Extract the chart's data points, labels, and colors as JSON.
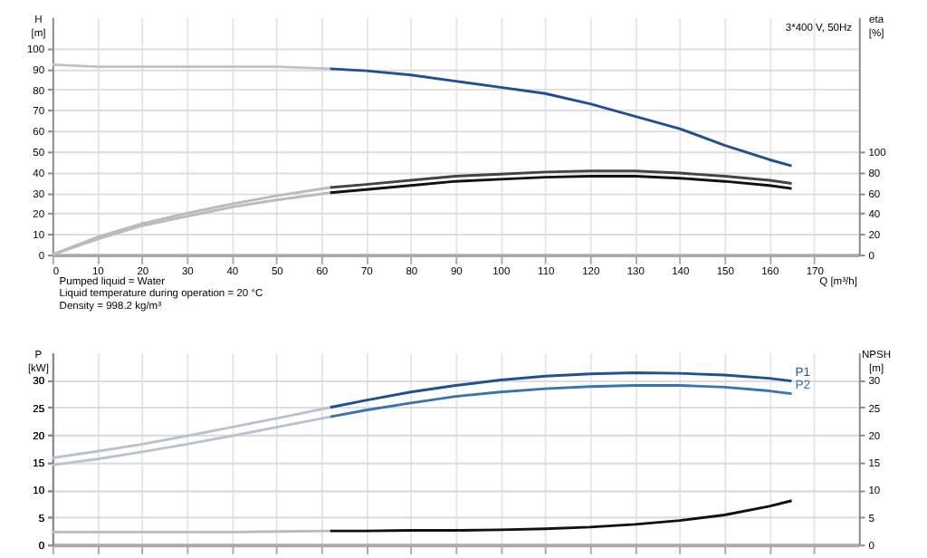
{
  "chart_data": [
    {
      "type": "line",
      "xlabel": "Q [m³/h]",
      "ylabel": "H [m]",
      "y2label": "eta [%]",
      "annotations": [
        "3*400 V, 50Hz",
        "Pumped liquid = Water",
        "Liquid temperature during operation = 20 °C",
        "Density = 998.2 kg/m³"
      ],
      "xlim": [
        0,
        180
      ],
      "xticks": [
        0,
        10,
        20,
        30,
        40,
        50,
        60,
        70,
        80,
        90,
        100,
        110,
        120,
        130,
        140,
        150,
        160,
        170
      ],
      "ylim": [
        0,
        115
      ],
      "yticks": [
        0,
        10,
        20,
        30,
        40,
        50,
        60,
        70,
        80,
        90,
        100
      ],
      "y2lim": [
        0,
        230
      ],
      "y2ticks": [
        0,
        20,
        40,
        60,
        80,
        100
      ],
      "grid": true,
      "series": [
        {
          "color": "#b9c3d0",
          "x": [
            0,
            10,
            20,
            30,
            40,
            50,
            62
          ],
          "values": [
            92,
            91,
            91,
            91,
            91,
            91,
            90
          ]
        },
        {
          "color": "#1f5192",
          "x": [
            62,
            70,
            80,
            90,
            100,
            110,
            120,
            130,
            140,
            150,
            160,
            165
          ],
          "values": [
            90,
            89,
            87,
            84,
            81,
            78,
            73,
            67,
            61,
            53,
            46,
            43
          ]
        },
        {
          "color": "#bbbbbb",
          "axis": "y2",
          "x": [
            0,
            10,
            20,
            30,
            40,
            50,
            62
          ],
          "values": [
            0,
            17,
            30,
            40,
            49,
            57,
            65
          ]
        },
        {
          "color": "#444444",
          "axis": "y2",
          "x": [
            62,
            70,
            80,
            90,
            100,
            110,
            120,
            130,
            140,
            150,
            160,
            165
          ],
          "values": [
            65,
            68,
            72,
            76,
            78,
            80,
            81,
            81,
            79,
            76,
            72,
            69
          ]
        },
        {
          "color": "#bbbbbb",
          "axis": "y2",
          "x": [
            0,
            10,
            20,
            30,
            40,
            50,
            62
          ],
          "values": [
            0,
            15,
            28,
            37,
            46,
            53,
            60
          ]
        },
        {
          "color": "#111111",
          "axis": "y2",
          "x": [
            62,
            70,
            80,
            90,
            100,
            110,
            120,
            130,
            140,
            150,
            160,
            165
          ],
          "values": [
            60,
            63,
            67,
            71,
            73,
            75,
            76,
            76,
            74,
            71,
            67,
            64
          ]
        }
      ]
    },
    {
      "type": "line",
      "ylabel": "P [kW]",
      "y2label": "NPSH [m]",
      "tick_labels": "y",
      "xlim": [
        0,
        180
      ],
      "xticks": [
        0,
        10,
        20,
        30,
        40,
        50,
        60,
        70,
        80,
        90,
        100,
        110,
        120,
        130,
        140,
        150,
        160,
        170
      ],
      "ylim": [
        0,
        35
      ],
      "yticks": [
        0,
        5,
        10,
        15,
        20,
        25,
        30
      ],
      "y2lim": [
        0,
        35
      ],
      "y2ticks": [
        0,
        5,
        10,
        15,
        20,
        25,
        30
      ],
      "grid": true,
      "series": [
        {
          "color": "#b9c3d0",
          "x": [
            0,
            10,
            20,
            30,
            40,
            50,
            62
          ],
          "values": [
            15.8,
            17,
            18.3,
            19.8,
            21.4,
            23,
            25
          ]
        },
        {
          "name": "P1",
          "color": "#1f5192",
          "x": [
            62,
            70,
            80,
            90,
            100,
            110,
            120,
            130,
            140,
            150,
            160,
            165
          ],
          "values": [
            25,
            26.3,
            27.8,
            29,
            30,
            30.7,
            31.1,
            31.3,
            31.2,
            30.9,
            30.3,
            29.8
          ]
        },
        {
          "color": "#b9c3d0",
          "x": [
            0,
            10,
            20,
            30,
            40,
            50,
            62
          ],
          "values": [
            14.5,
            15.6,
            16.9,
            18.3,
            19.8,
            21.4,
            23.3
          ]
        },
        {
          "name": "P2",
          "color": "#3b73b0",
          "x": [
            62,
            70,
            80,
            90,
            100,
            110,
            120,
            130,
            140,
            150,
            160,
            165
          ],
          "values": [
            23.3,
            24.5,
            25.8,
            27,
            27.8,
            28.4,
            28.8,
            29,
            29,
            28.7,
            28,
            27.5
          ]
        },
        {
          "color": "#bbbbbb",
          "axis": "y2",
          "x": [
            0,
            10,
            20,
            30,
            40,
            50,
            62
          ],
          "values": [
            2.3,
            2.3,
            2.3,
            2.3,
            2.3,
            2.4,
            2.5
          ]
        },
        {
          "color": "#111111",
          "axis": "y2",
          "x": [
            62,
            70,
            80,
            90,
            100,
            110,
            120,
            130,
            140,
            150,
            160,
            165
          ],
          "values": [
            2.5,
            2.5,
            2.6,
            2.6,
            2.7,
            2.9,
            3.2,
            3.7,
            4.4,
            5.4,
            7,
            8
          ]
        }
      ]
    }
  ]
}
